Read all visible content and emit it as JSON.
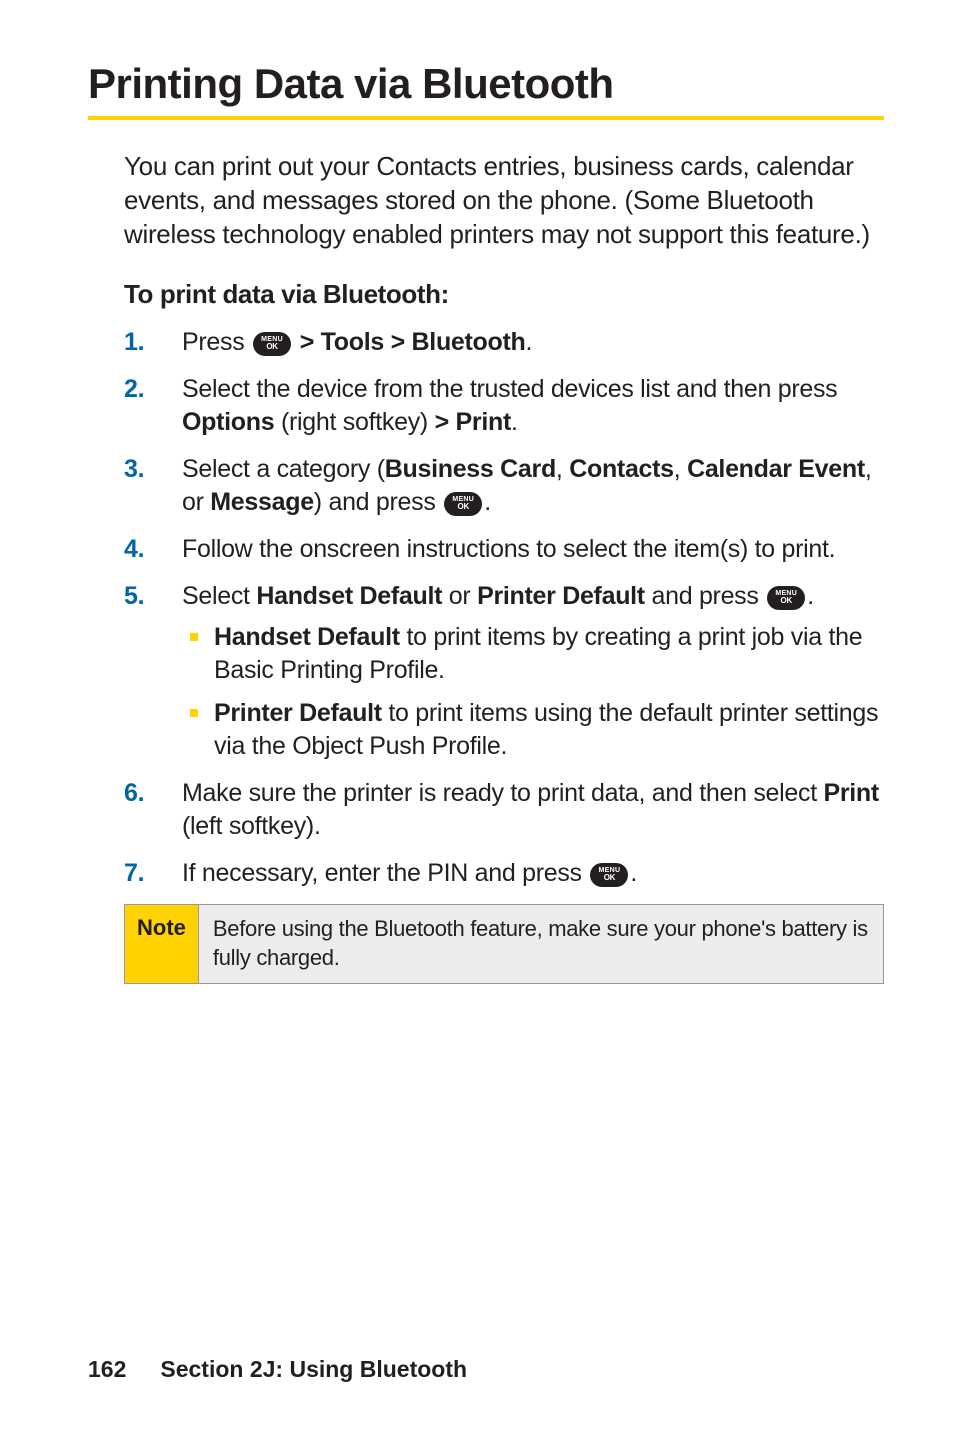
{
  "title": "Printing Data via Bluetooth",
  "intro": "You can print out your Contacts entries, business cards, calendar events, and messages stored on the phone. (Some Bluetooth wireless technology enabled printers may not support this feature.)",
  "subhead": "To print data via Bluetooth:",
  "steps": {
    "s1_a": "Press ",
    "s1_b": " > Tools > Bluetooth",
    "s1_c": ".",
    "s2_a": "Select the device from the trusted devices list and then press ",
    "s2_b": "Options",
    "s2_c": " (right softkey) ",
    "s2_d": "> Print",
    "s2_e": ".",
    "s3_a": "Select a category (",
    "s3_b": "Business Card",
    "s3_c": ", ",
    "s3_d": "Contacts",
    "s3_e": ", ",
    "s3_f": "Calendar Event",
    "s3_g": ", or ",
    "s3_h": "Message",
    "s3_i": ") and press ",
    "s3_j": ".",
    "s4": "Follow the onscreen instructions to select the item(s) to print.",
    "s5_a": "Select ",
    "s5_b": "Handset Default",
    "s5_c": " or ",
    "s5_d": "Printer Default",
    "s5_e": " and press ",
    "s5_f": ".",
    "s5_sub1_b": "Handset Default",
    "s5_sub1_t": " to print items by creating a print job via the Basic Printing Profile.",
    "s5_sub2_b": "Printer Default",
    "s5_sub2_t": " to print items using the default printer settings via the Object Push Profile.",
    "s6_a": "Make sure the printer is ready to print data, and then select ",
    "s6_b": "Print",
    "s6_c": " (left softkey).",
    "s7_a": "If necessary, enter the PIN and press ",
    "s7_b": "."
  },
  "note_label": "Note",
  "note_text": "Before using the Bluetooth feature, make sure your phone's battery is fully charged.",
  "footer_page": "162",
  "footer_section": "Section 2J: Using Bluetooth",
  "colors": {
    "accent_yellow": "#ffd200",
    "step_number": "#0066a4",
    "text": "#231f20",
    "note_bg": "#ececec"
  }
}
